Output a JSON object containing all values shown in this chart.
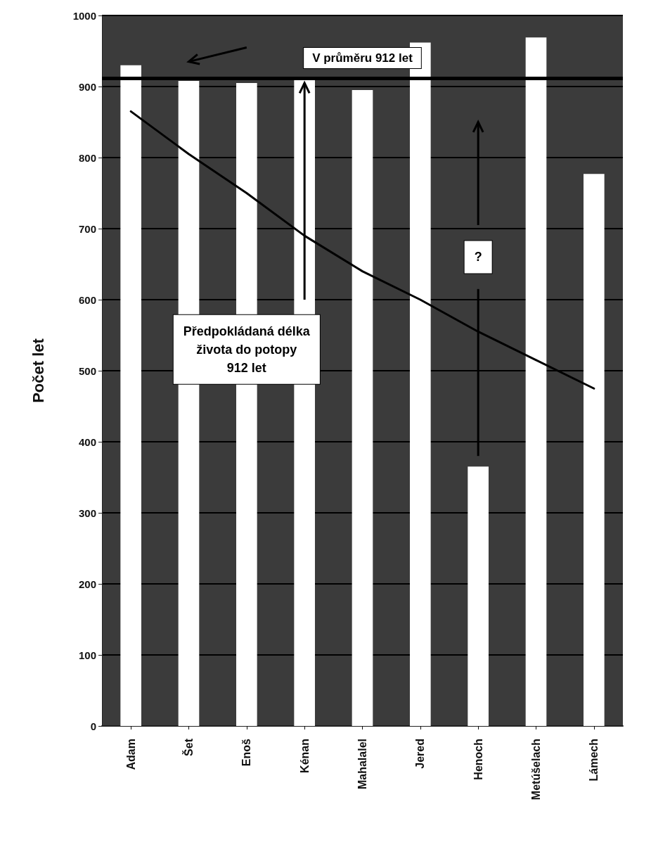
{
  "chart_data": {
    "type": "bar",
    "ylabel": "Počet let",
    "categories": [
      "Adam",
      "Šet",
      "Enoš",
      "Kénan",
      "Mahalalel",
      "Jered",
      "Henoch",
      "Metúšelach",
      "Lámech"
    ],
    "series": [
      {
        "color": "#ffffff",
        "values": [
          930,
          908,
          905,
          910,
          895,
          962,
          365,
          969,
          777
        ]
      },
      {
        "type": "line",
        "color": "#000000",
        "x": [
          "Adam",
          "Šet",
          "Enoš",
          "Kénan",
          "Mahalalel",
          "Jered",
          "Henoch",
          "Metúšelach",
          "Lámech"
        ],
        "values": [
          865,
          805,
          750,
          690,
          640,
          600,
          555,
          515,
          475
        ]
      }
    ],
    "ylim": [
      0,
      1000
    ],
    "yticks": [
      0,
      100,
      200,
      300,
      400,
      500,
      600,
      700,
      800,
      900,
      1000
    ],
    "grid": "y",
    "marker": "none",
    "line_style": "solid",
    "ref_lines": [
      {
        "axis": "y",
        "value": 912,
        "label": "V průměru 912 let",
        "color": "#000000"
      }
    ],
    "annotations": [
      "Předpokládaná délka života do potopy 912 let",
      "?"
    ]
  }
}
